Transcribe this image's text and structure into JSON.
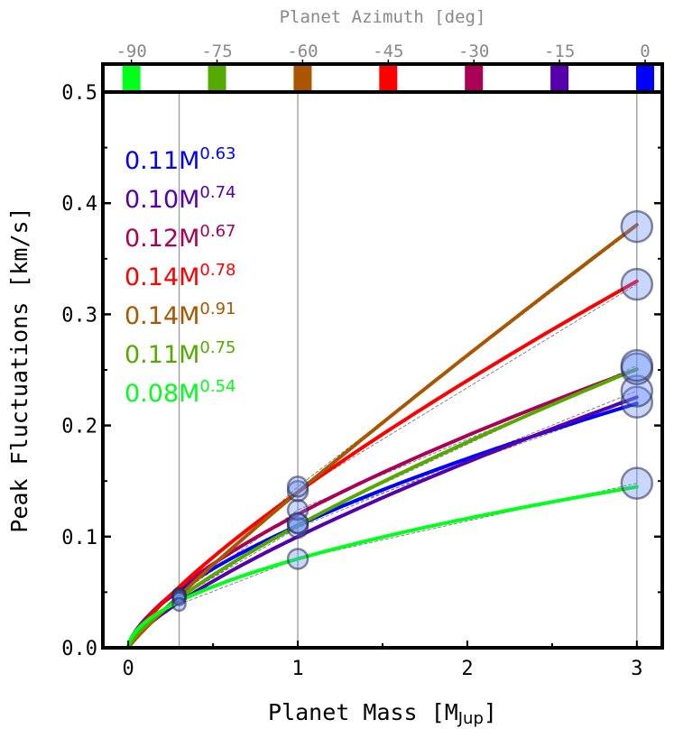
{
  "chart_data": {
    "type": "line",
    "xlabel_main": "Planet Mass [M",
    "xlabel_sub": "Jup",
    "xlabel_close": "]",
    "ylabel": "Peak Fluctuations [km/s]",
    "top_label": "Planet Azimuth [deg]",
    "xlim": [
      -0.15,
      3.15
    ],
    "ylim": [
      0.0,
      0.5
    ],
    "xticks": [
      {
        "v": 0,
        "label": "0"
      },
      {
        "v": 1,
        "label": "1"
      },
      {
        "v": 2,
        "label": "2"
      },
      {
        "v": 3,
        "label": "3"
      }
    ],
    "yticks": [
      {
        "v": 0.0,
        "label": "0.0"
      },
      {
        "v": 0.1,
        "label": "0.1"
      },
      {
        "v": 0.2,
        "label": "0.2"
      },
      {
        "v": 0.3,
        "label": "0.3"
      },
      {
        "v": 0.4,
        "label": "0.4"
      },
      {
        "v": 0.5,
        "label": "0.5"
      }
    ],
    "vlines": [
      0.3,
      1,
      3
    ],
    "azimuth_ticks": [
      {
        "v": -90,
        "label": "-90",
        "color": "#00ff1a"
      },
      {
        "v": -75,
        "label": "-75",
        "color": "#55aa00"
      },
      {
        "v": -60,
        "label": "-60",
        "color": "#aa5500"
      },
      {
        "v": -45,
        "label": "-45",
        "color": "#ff0000"
      },
      {
        "v": -30,
        "label": "-30",
        "color": "#aa0055"
      },
      {
        "v": -15,
        "label": "-15",
        "color": "#5500aa"
      },
      {
        "v": 0,
        "label": "0",
        "color": "#0000ff"
      }
    ],
    "azimuth_range": [
      -95,
      3
    ],
    "series": [
      {
        "name": "az0",
        "coef": 0.11,
        "exp": 0.63,
        "coef_label": "0.11M",
        "exp_label": "0.63",
        "color": "#0000ff",
        "points": [
          [
            0.3,
            0.047
          ],
          [
            1,
            0.112
          ],
          [
            3,
            0.221
          ]
        ]
      },
      {
        "name": "az-15",
        "coef": 0.1,
        "exp": 0.74,
        "coef_label": "0.10M",
        "exp_label": "0.74",
        "color": "#5500aa",
        "points": [
          [
            0.3,
            0.045
          ],
          [
            1,
            0.108
          ],
          [
            3,
            0.231
          ]
        ]
      },
      {
        "name": "az-30",
        "coef": 0.12,
        "exp": 0.67,
        "coef_label": "0.12M",
        "exp_label": "0.67",
        "color": "#aa0055",
        "points": [
          [
            0.3,
            0.048
          ],
          [
            1,
            0.124
          ],
          [
            3,
            0.251
          ]
        ]
      },
      {
        "name": "az-45",
        "coef": 0.14,
        "exp": 0.78,
        "coef_label": "0.14M",
        "exp_label": "0.78",
        "color": "#ff0000",
        "points": [
          [
            0.3,
            0.047
          ],
          [
            1,
            0.141
          ],
          [
            3,
            0.327
          ]
        ]
      },
      {
        "name": "az-60",
        "coef": 0.14,
        "exp": 0.91,
        "coef_label": "0.14M",
        "exp_label": "0.91",
        "color": "#aa5500",
        "points": [
          [
            0.3,
            0.046
          ],
          [
            1,
            0.145
          ],
          [
            3,
            0.379
          ]
        ]
      },
      {
        "name": "az-75",
        "coef": 0.11,
        "exp": 0.75,
        "coef_label": "0.11M",
        "exp_label": "0.75",
        "color": "#55aa00",
        "points": [
          [
            0.3,
            0.044
          ],
          [
            1,
            0.112
          ],
          [
            3,
            0.254
          ]
        ]
      },
      {
        "name": "az-90",
        "coef": 0.08,
        "exp": 0.54,
        "coef_label": "0.08M",
        "exp_label": "0.54",
        "color": "#00ff1a",
        "points": [
          [
            0.3,
            0.039
          ],
          [
            1,
            0.08
          ],
          [
            3,
            0.148
          ]
        ]
      }
    ]
  }
}
